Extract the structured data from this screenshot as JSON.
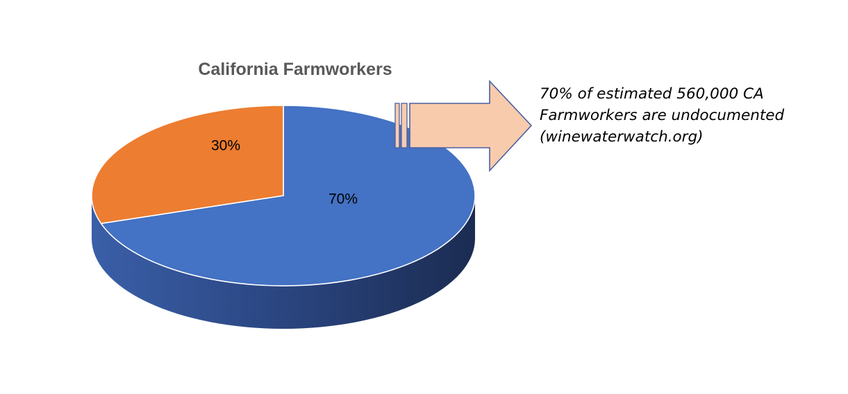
{
  "chart_data": {
    "type": "pie",
    "title": "California Farmworkers",
    "start_angle_deg": 0,
    "direction": "clockwise",
    "three_d": true,
    "slices": [
      {
        "value": 70,
        "label": "70%",
        "color": "#4472C4"
      },
      {
        "value": 30,
        "label": "30%",
        "color": "#ED7D31"
      }
    ]
  },
  "callout": {
    "lines": [
      "70% of estimated 560,000 CA",
      "Farmworkers are undocumented",
      "(winewaterwatch.org)"
    ],
    "arrow_fill": "#F8CBAD",
    "arrow_stroke": "#4A5FA0"
  }
}
